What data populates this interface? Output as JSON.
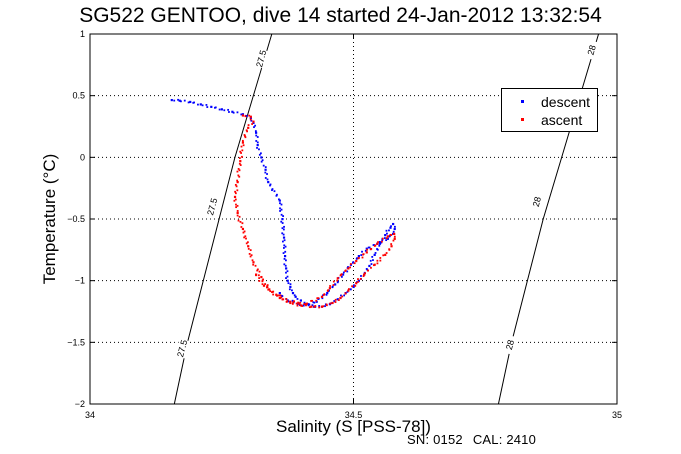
{
  "title": "SG522 GENTOO, dive 14 started 24-Jan-2012 13:32:54",
  "footer": {
    "serial": "SN: 0152",
    "calibration": "CAL: 2410"
  },
  "chart_data": {
    "type": "scatter",
    "title": "SG522 GENTOO, dive 14 started 24-Jan-2012 13:32:54",
    "xlabel": "Salinity (S [PSS-78])",
    "ylabel": "Temperature (°C)",
    "xlim": [
      34,
      35
    ],
    "ylim": [
      -2,
      1
    ],
    "xticks": [
      34,
      34.5,
      35
    ],
    "xtick_labels": [
      "34",
      "34.5",
      "35"
    ],
    "yticks": [
      -2,
      -1.5,
      -1,
      -0.5,
      0,
      0.5,
      1
    ],
    "ytick_labels": [
      "−2",
      "−1.5",
      "−1",
      "−0.5",
      "0",
      "0.5",
      "1"
    ],
    "grid": true,
    "legend_position": "top-right",
    "series": [
      {
        "name": "descent",
        "color": "#0000ff",
        "points": [
          [
            34.155,
            0.465
          ],
          [
            34.17,
            0.46
          ],
          [
            34.19,
            0.45
          ],
          [
            34.21,
            0.43
          ],
          [
            34.23,
            0.41
          ],
          [
            34.25,
            0.39
          ],
          [
            34.27,
            0.37
          ],
          [
            34.29,
            0.35
          ],
          [
            34.305,
            0.32
          ],
          [
            34.31,
            0.28
          ],
          [
            34.315,
            0.2
          ],
          [
            34.318,
            0.1
          ],
          [
            34.325,
            0.0
          ],
          [
            34.333,
            -0.1
          ],
          [
            34.338,
            -0.2
          ],
          [
            34.36,
            -0.35
          ],
          [
            34.365,
            -0.5
          ],
          [
            34.368,
            -0.65
          ],
          [
            34.37,
            -0.8
          ],
          [
            34.372,
            -0.9
          ],
          [
            34.375,
            -1.0
          ],
          [
            34.38,
            -1.05
          ],
          [
            34.385,
            -1.1
          ],
          [
            34.39,
            -1.13
          ],
          [
            34.4,
            -1.16
          ],
          [
            34.41,
            -1.19
          ],
          [
            34.425,
            -1.21
          ],
          [
            34.44,
            -1.21
          ],
          [
            34.455,
            -1.19
          ],
          [
            34.47,
            -1.15
          ],
          [
            34.485,
            -1.1
          ],
          [
            34.5,
            -1.05
          ],
          [
            34.51,
            -1.0
          ],
          [
            34.52,
            -0.95
          ],
          [
            34.53,
            -0.88
          ],
          [
            34.54,
            -0.79
          ],
          [
            34.55,
            -0.7
          ],
          [
            34.56,
            -0.63
          ],
          [
            34.57,
            -0.57
          ],
          [
            34.575,
            -0.54
          ],
          [
            34.578,
            -0.58
          ],
          [
            34.575,
            -0.62
          ],
          [
            34.565,
            -0.66
          ],
          [
            34.545,
            -0.7
          ],
          [
            34.525,
            -0.74
          ],
          [
            34.51,
            -0.8
          ],
          [
            34.495,
            -0.87
          ],
          [
            34.48,
            -0.95
          ],
          [
            34.465,
            -1.03
          ],
          [
            34.45,
            -1.1
          ],
          [
            34.43,
            -1.17
          ],
          [
            34.405,
            -1.2
          ],
          [
            34.375,
            -1.16
          ],
          [
            34.36,
            -1.1
          ]
        ]
      },
      {
        "name": "ascent",
        "color": "#ff0000",
        "points": [
          [
            34.29,
            0.34
          ],
          [
            34.305,
            0.33
          ],
          [
            34.31,
            0.29
          ],
          [
            34.3,
            0.24
          ],
          [
            34.29,
            0.12
          ],
          [
            34.285,
            -0.03
          ],
          [
            34.28,
            -0.2
          ],
          [
            34.275,
            -0.32
          ],
          [
            34.28,
            -0.45
          ],
          [
            34.29,
            -0.58
          ],
          [
            34.3,
            -0.72
          ],
          [
            34.31,
            -0.85
          ],
          [
            34.325,
            -0.97
          ],
          [
            34.34,
            -1.07
          ],
          [
            34.36,
            -1.14
          ],
          [
            34.38,
            -1.18
          ],
          [
            34.4,
            -1.2
          ],
          [
            34.42,
            -1.21
          ],
          [
            34.44,
            -1.21
          ],
          [
            34.46,
            -1.18
          ],
          [
            34.475,
            -1.14
          ],
          [
            34.49,
            -1.08
          ],
          [
            34.505,
            -1.02
          ],
          [
            34.52,
            -0.95
          ],
          [
            34.54,
            -0.87
          ],
          [
            34.56,
            -0.79
          ],
          [
            34.572,
            -0.72
          ],
          [
            34.578,
            -0.66
          ],
          [
            34.577,
            -0.62
          ],
          [
            34.565,
            -0.64
          ],
          [
            34.545,
            -0.7
          ],
          [
            34.525,
            -0.77
          ],
          [
            34.505,
            -0.84
          ],
          [
            34.49,
            -0.9
          ],
          [
            34.47,
            -0.98
          ],
          [
            34.455,
            -1.06
          ],
          [
            34.44,
            -1.13
          ],
          [
            34.41,
            -1.19
          ],
          [
            34.38,
            -1.17
          ],
          [
            34.355,
            -1.12
          ],
          [
            34.33,
            -1.04
          ],
          [
            34.315,
            -0.95
          ]
        ]
      }
    ],
    "isopycnals": [
      {
        "label": "27.5",
        "points": [
          [
            34.16,
            -2.0
          ],
          [
            34.185,
            -1.5
          ],
          [
            34.215,
            -1.0
          ],
          [
            34.245,
            -0.5
          ],
          [
            34.275,
            0.0
          ],
          [
            34.31,
            0.5
          ],
          [
            34.345,
            1.0
          ]
        ],
        "label_positions": [
          [
            34.325,
            0.8
          ],
          [
            34.232,
            -0.4
          ],
          [
            34.175,
            -1.55
          ]
        ]
      },
      {
        "label": "28",
        "points": [
          [
            34.775,
            -2.0
          ],
          [
            34.8,
            -1.5
          ],
          [
            34.83,
            -1.0
          ],
          [
            34.86,
            -0.5
          ],
          [
            34.895,
            0.0
          ],
          [
            34.93,
            0.5
          ],
          [
            34.965,
            1.0
          ]
        ],
        "label_positions": [
          [
            34.952,
            0.87
          ],
          [
            34.848,
            -0.36
          ],
          [
            34.797,
            -1.52
          ]
        ]
      }
    ]
  }
}
